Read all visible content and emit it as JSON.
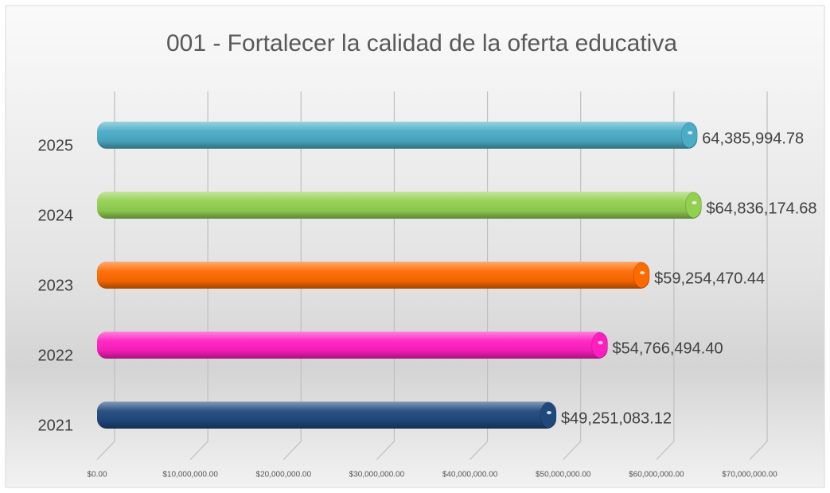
{
  "chart_data": {
    "type": "bar",
    "orientation": "horizontal",
    "title": "001 - Fortalecer la calidad de la oferta educativa",
    "categories": [
      "2025",
      "2024",
      "2023",
      "2022",
      "2021"
    ],
    "values": [
      64385994.78,
      64836174.68,
      59254470.44,
      54766494.4,
      49251083.12
    ],
    "value_labels": [
      "64,385,994.78",
      "$64,836,174.68",
      "$59,254,470.44",
      "$54,766,494.40",
      "$49,251,083.12"
    ],
    "colors": [
      "#4bacc6",
      "#92d050",
      "#ff6a00",
      "#ff1fc0",
      "#1f497d"
    ],
    "xlim": [
      0,
      70000000
    ],
    "xticks": [
      {
        "value": 0,
        "label": "$0.00"
      },
      {
        "value": 10000000,
        "label": "$10,000,000.00"
      },
      {
        "value": 20000000,
        "label": "$20,000,000.00"
      },
      {
        "value": 30000000,
        "label": "$30,000,000.00"
      },
      {
        "value": 40000000,
        "label": "$40,000,000.00"
      },
      {
        "value": 50000000,
        "label": "$50,000,000.00"
      },
      {
        "value": 60000000,
        "label": "$60,000,000.00"
      },
      {
        "value": 70000000,
        "label": "$70,000,000.00"
      }
    ],
    "grid": true
  }
}
